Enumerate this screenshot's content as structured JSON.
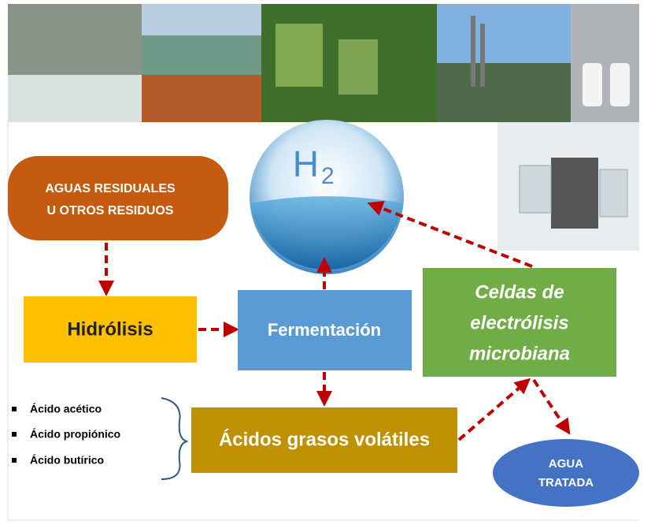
{
  "h2": {
    "symbol": "H",
    "subscript": "2"
  },
  "nodes": {
    "source": {
      "lines": [
        "AGUAS RESIDUALES",
        "U OTROS RESIDUOS"
      ]
    },
    "hydrolysis": {
      "label": "Hidrólisis"
    },
    "fermentation": {
      "label": "Fermentación"
    },
    "cells": {
      "lines": [
        "Celdas de",
        "electrólisis",
        "microbiana"
      ]
    },
    "acids": {
      "label": "Ácidos grasos volátiles"
    },
    "water": {
      "lines": [
        "AGUA",
        "TRATADA"
      ]
    }
  },
  "products": [
    "Ácido acético",
    "Ácido propiónico",
    "Ácido butírico"
  ]
}
